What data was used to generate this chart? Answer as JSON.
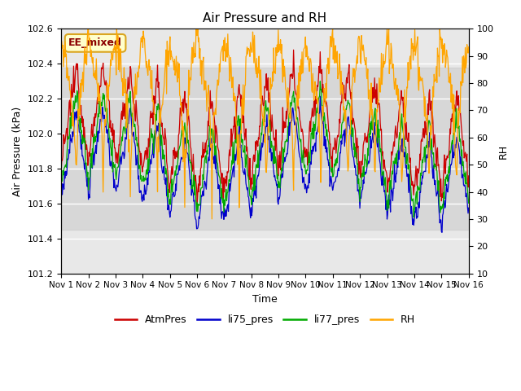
{
  "title": "Air Pressure and RH",
  "ylabel_left": "Air Pressure (kPa)",
  "ylabel_right": "RH",
  "xlabel": "Time",
  "ylim_left": [
    101.2,
    102.6
  ],
  "ylim_right": [
    10,
    100
  ],
  "yticks_left": [
    101.2,
    101.4,
    101.6,
    101.8,
    102.0,
    102.2,
    102.4,
    102.6
  ],
  "yticks_right": [
    10,
    20,
    30,
    40,
    50,
    60,
    70,
    80,
    90,
    100
  ],
  "xtick_labels": [
    "Nov 1",
    "Nov 2",
    "Nov 3",
    "Nov 4",
    "Nov 5",
    "Nov 6",
    "Nov 7",
    "Nov 8",
    "Nov 9",
    "Nov 10",
    "Nov 11",
    "Nov 12",
    "Nov 13",
    "Nov 14",
    "Nov 15",
    "Nov 16"
  ],
  "annotation_text": "EE_mixed",
  "annotation_color": "#8B0000",
  "annotation_bg": "#FFFFCC",
  "annotation_border": "#DAA520",
  "colors": {
    "AtmPres": "#CC0000",
    "li75_pres": "#0000CC",
    "li77_pres": "#00AA00",
    "RH": "#FFA500"
  },
  "bg_color": "#FFFFFF",
  "plot_bg": "#E8E8E8",
  "grid_color": "#FFFFFF",
  "shadeband_low": 101.45,
  "shadeband_high": 102.38,
  "days": 15,
  "n_points": 720
}
